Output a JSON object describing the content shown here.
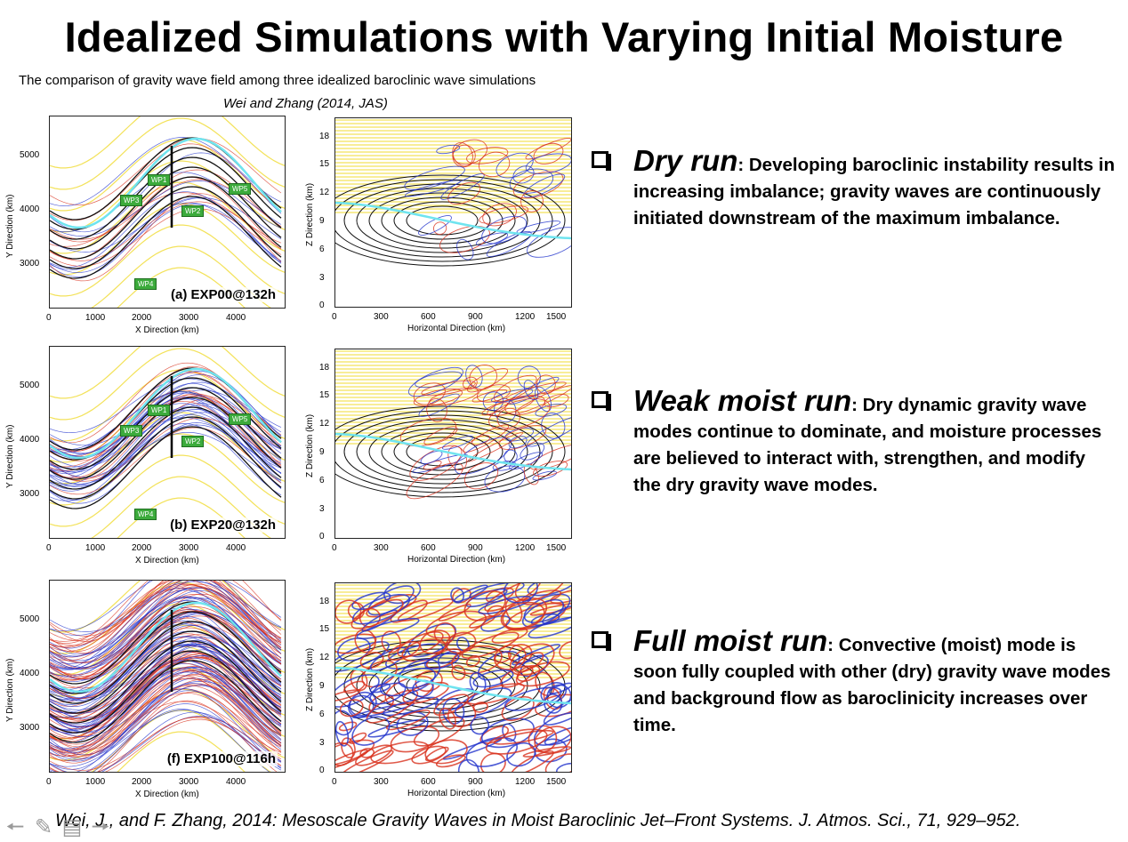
{
  "slide": {
    "title": "Idealized Simulations with Varying Initial Moisture",
    "subtitle": "The comparison of gravity wave field among three idealized baroclinic wave simulations",
    "caption": "Wei and Zhang (2014, JAS)",
    "reference": "Wei, J., and F. Zhang, 2014: Mesoscale Gravity Waves in Moist Baroclinic Jet–Front Systems. J. Atmos. Sci., 71, 929–952."
  },
  "map_axes": {
    "xlabel": "X Direction (km)",
    "ylabel": "Y Direction (km)",
    "xticks": [
      "0",
      "1000",
      "2000",
      "3000",
      "4000"
    ],
    "yticks": [
      "5000",
      "4000",
      "3000"
    ]
  },
  "section_axes": {
    "xlabel": "Horizontal Direction (km)",
    "ylabel": "Z Direction (km)",
    "xticks": [
      "0",
      "300",
      "600",
      "900",
      "1200",
      "1500"
    ],
    "yticks": [
      "18",
      "15",
      "12",
      "9",
      "6",
      "3",
      "0"
    ]
  },
  "wave_tags": [
    "WP1",
    "WP2",
    "WP3",
    "WP4",
    "WP5"
  ],
  "panels": [
    {
      "label": "(a) EXP00@132h",
      "show_tags": true
    },
    {
      "label": "(b) EXP20@132h",
      "show_tags": true
    },
    {
      "label": "(f) EXP100@116h",
      "show_tags": false
    }
  ],
  "bullets": [
    {
      "head": "Dry run",
      "text": ": Developing baroclinic instability results in increasing imbalance; gravity waves are continuously initiated downstream of the maximum imbalance."
    },
    {
      "head": "Weak moist run",
      "text": ": Dry dynamic gravity wave modes continue to dominate, and moisture processes are believed to interact with, strengthen, and modify the dry gravity wave modes."
    },
    {
      "head": "Full moist run",
      "text": ": Convective (moist) mode is soon fully coupled with other (dry) gravity wave modes and background flow as baroclinicity increases over time."
    }
  ],
  "toolbar": {
    "icons": [
      "back-arrow-icon",
      "pen-icon",
      "menu-icon",
      "forward-arrow-icon"
    ]
  },
  "colors": {
    "yellow": "#f3e25a",
    "cyan": "#6fe4ef",
    "blue": "#2233cc",
    "red": "#d8301c",
    "tag_green": "#3cab3c"
  }
}
